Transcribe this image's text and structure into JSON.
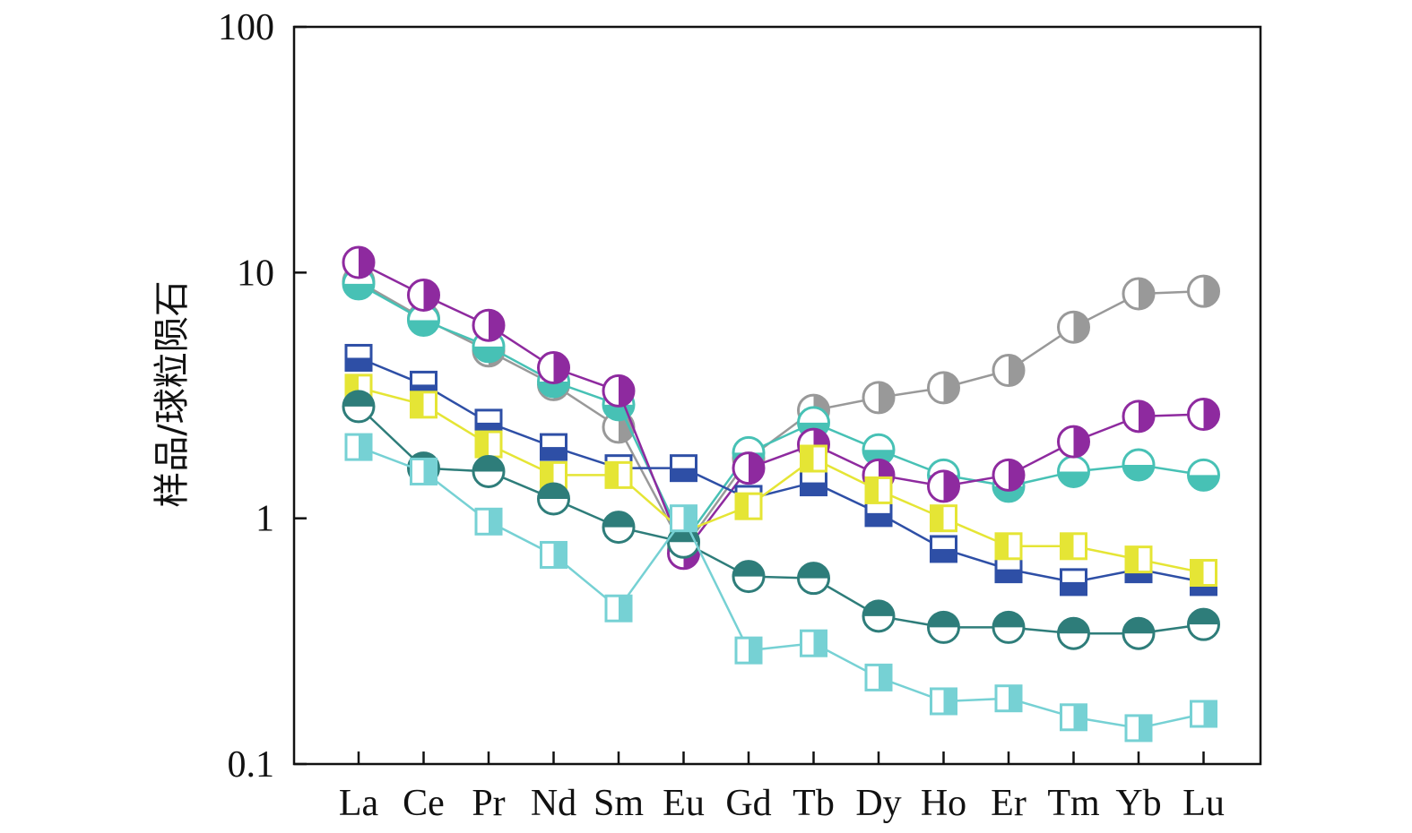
{
  "chart_data": {
    "type": "line",
    "title": "",
    "xlabel": "",
    "ylabel": "样品/球粒陨石",
    "yscale": "log",
    "ylim": [
      0.1,
      100
    ],
    "yticks": [
      {
        "value": 0.1,
        "label": "0.1"
      },
      {
        "value": 1,
        "label": "1"
      },
      {
        "value": 10,
        "label": "10"
      },
      {
        "value": 100,
        "label": "100"
      }
    ],
    "grid": false,
    "legend": "none",
    "categories": [
      "La",
      "Ce",
      "Pr",
      "Nd",
      "Sm",
      "Eu",
      "Gd",
      "Tb",
      "Dy",
      "Ho",
      "Er",
      "Tm",
      "Yb",
      "Lu"
    ],
    "series": [
      {
        "color": "#999999",
        "marker": "circle-half-right",
        "values": [
          9.2,
          6.5,
          4.8,
          3.5,
          2.35,
          0.75,
          1.75,
          2.75,
          3.1,
          3.4,
          4.0,
          6.0,
          8.2,
          8.4
        ]
      },
      {
        "color": "#47C1B5",
        "marker": "circle-half-bottom",
        "values": [
          9.0,
          6.4,
          5.0,
          3.6,
          2.9,
          0.8,
          1.85,
          2.45,
          1.9,
          1.5,
          1.35,
          1.55,
          1.65,
          1.5
        ]
      },
      {
        "color": "#8E2A9F",
        "marker": "circle-half-right",
        "values": [
          11.0,
          8.1,
          6.1,
          4.1,
          3.3,
          0.72,
          1.6,
          2.0,
          1.5,
          1.35,
          1.5,
          2.05,
          2.6,
          2.65
        ]
      },
      {
        "color": "#2E4FA6",
        "marker": "square-half-bottom",
        "values": [
          4.5,
          3.5,
          2.45,
          1.95,
          1.6,
          1.6,
          1.2,
          1.4,
          1.05,
          0.75,
          0.62,
          0.55,
          0.62,
          0.55
        ]
      },
      {
        "color": "#E5E535",
        "marker": "square-half-left",
        "values": [
          3.4,
          2.9,
          2.0,
          1.5,
          1.5,
          0.88,
          1.12,
          1.75,
          1.3,
          1.0,
          0.77,
          0.77,
          0.68,
          0.6
        ]
      },
      {
        "color": "#2E7D7A",
        "marker": "circle-half-top",
        "values": [
          2.85,
          1.6,
          1.55,
          1.2,
          0.92,
          0.8,
          0.58,
          0.57,
          0.4,
          0.36,
          0.36,
          0.34,
          0.34,
          0.37
        ]
      },
      {
        "color": "#76D1D4",
        "marker": "square-half-right",
        "values": [
          1.95,
          1.55,
          0.97,
          0.71,
          0.43,
          1.0,
          0.29,
          0.31,
          0.225,
          0.18,
          0.185,
          0.155,
          0.14,
          0.16
        ]
      }
    ]
  }
}
